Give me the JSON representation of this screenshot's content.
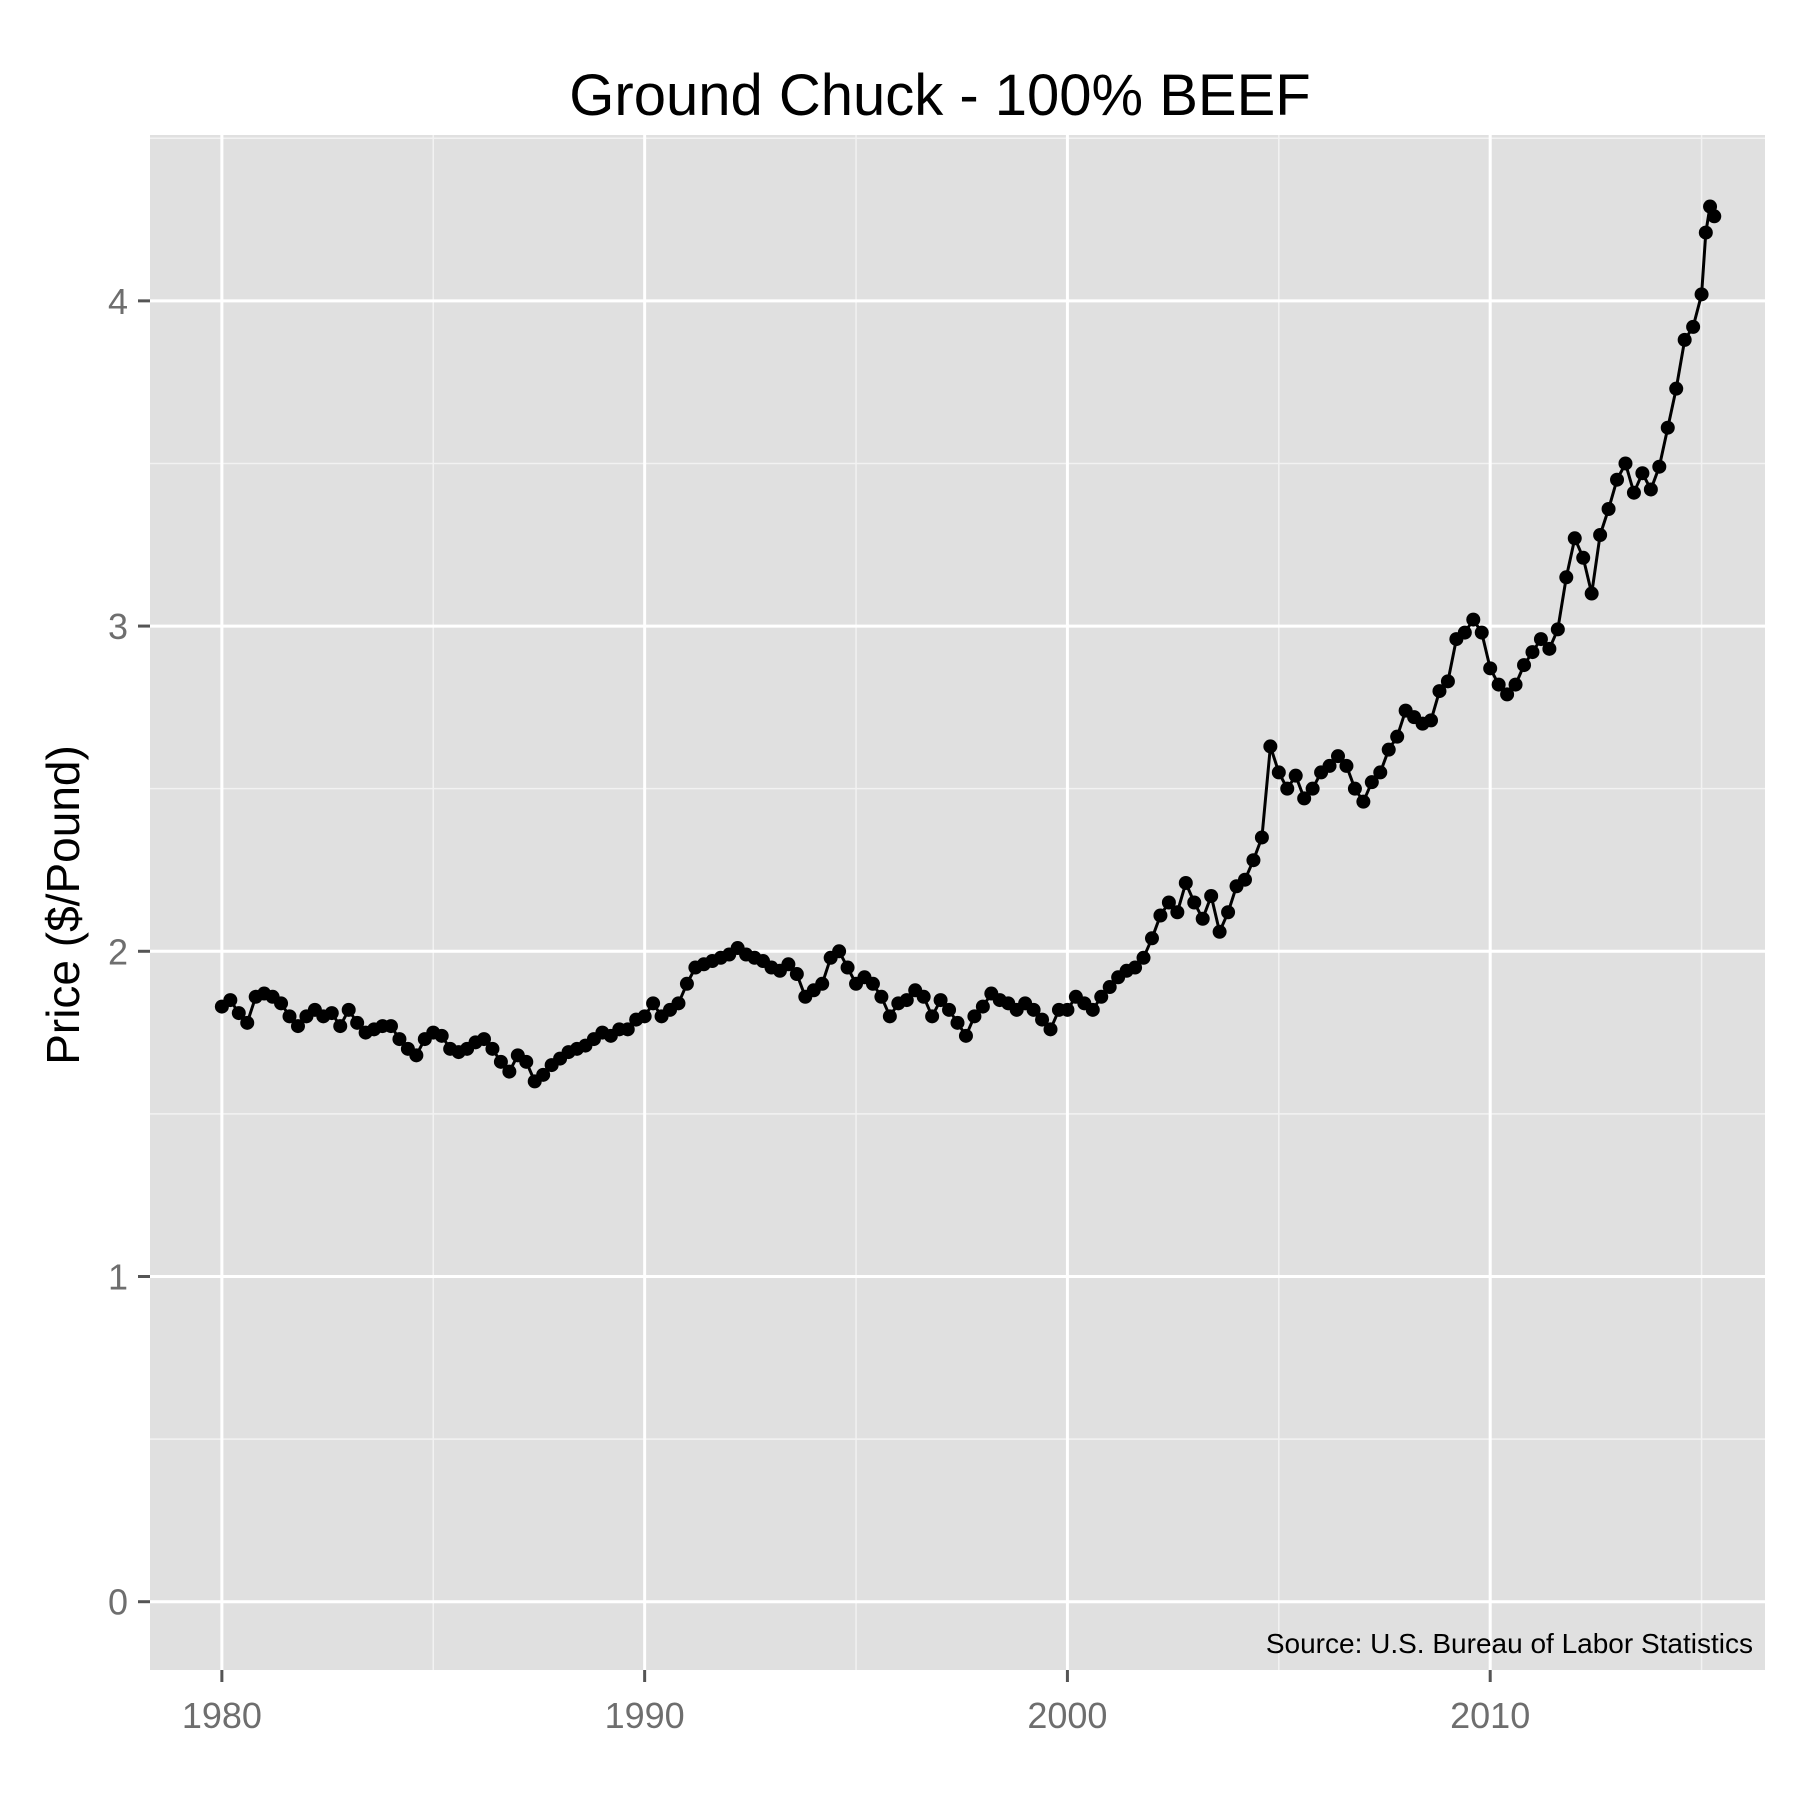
{
  "chart_data": {
    "type": "line",
    "title": "Ground Chuck - 100% BEEF",
    "xlabel": "",
    "ylabel": "Price ($/Pound)",
    "source_note": "Source:  U.S. Bureau of Labor Statistics",
    "xlim": [
      1978.3,
      2016.5
    ],
    "ylim": [
      -0.21,
      4.51
    ],
    "x_ticks": [
      1980,
      1990,
      2000,
      2010
    ],
    "x_tick_labels": [
      "1980",
      "1990",
      "2000",
      "2010"
    ],
    "y_ticks": [
      0,
      1,
      2,
      3,
      4
    ],
    "y_tick_labels": [
      "0",
      "1",
      "2",
      "3",
      "4"
    ],
    "grid": true,
    "legend": "none",
    "colors": {
      "panel_background": "#e0e0e0",
      "grid_major": "#ffffff",
      "grid_minor": "#f2f2f2",
      "series": "#000000",
      "tick_label": "#6e6e6e",
      "text": "#000000"
    },
    "series": [
      {
        "points": [
          [
            1980.0,
            1.83
          ],
          [
            1980.2,
            1.85
          ],
          [
            1980.4,
            1.81
          ],
          [
            1980.6,
            1.78
          ],
          [
            1980.8,
            1.86
          ],
          [
            1981.0,
            1.87
          ],
          [
            1981.2,
            1.86
          ],
          [
            1981.4,
            1.84
          ],
          [
            1981.6,
            1.8
          ],
          [
            1981.8,
            1.77
          ],
          [
            1982.0,
            1.8
          ],
          [
            1982.2,
            1.82
          ],
          [
            1982.4,
            1.8
          ],
          [
            1982.6,
            1.81
          ],
          [
            1982.8,
            1.77
          ],
          [
            1983.0,
            1.82
          ],
          [
            1983.2,
            1.78
          ],
          [
            1983.4,
            1.75
          ],
          [
            1983.6,
            1.76
          ],
          [
            1983.8,
            1.77
          ],
          [
            1984.0,
            1.77
          ],
          [
            1984.2,
            1.73
          ],
          [
            1984.4,
            1.7
          ],
          [
            1984.6,
            1.68
          ],
          [
            1984.8,
            1.73
          ],
          [
            1985.0,
            1.75
          ],
          [
            1985.2,
            1.74
          ],
          [
            1985.4,
            1.7
          ],
          [
            1985.6,
            1.69
          ],
          [
            1985.8,
            1.7
          ],
          [
            1986.0,
            1.72
          ],
          [
            1986.2,
            1.73
          ],
          [
            1986.4,
            1.7
          ],
          [
            1986.6,
            1.66
          ],
          [
            1986.8,
            1.63
          ],
          [
            1987.0,
            1.68
          ],
          [
            1987.2,
            1.66
          ],
          [
            1987.4,
            1.6
          ],
          [
            1987.6,
            1.62
          ],
          [
            1987.8,
            1.65
          ],
          [
            1988.0,
            1.67
          ],
          [
            1988.2,
            1.69
          ],
          [
            1988.4,
            1.7
          ],
          [
            1988.6,
            1.71
          ],
          [
            1988.8,
            1.73
          ],
          [
            1989.0,
            1.75
          ],
          [
            1989.2,
            1.74
          ],
          [
            1989.4,
            1.76
          ],
          [
            1989.6,
            1.76
          ],
          [
            1989.8,
            1.79
          ],
          [
            1990.0,
            1.8
          ],
          [
            1990.2,
            1.84
          ],
          [
            1990.4,
            1.8
          ],
          [
            1990.6,
            1.82
          ],
          [
            1990.8,
            1.84
          ],
          [
            1991.0,
            1.9
          ],
          [
            1991.2,
            1.95
          ],
          [
            1991.4,
            1.96
          ],
          [
            1991.6,
            1.97
          ],
          [
            1991.8,
            1.98
          ],
          [
            1992.0,
            1.99
          ],
          [
            1992.2,
            2.01
          ],
          [
            1992.4,
            1.99
          ],
          [
            1992.6,
            1.98
          ],
          [
            1992.8,
            1.97
          ],
          [
            1993.0,
            1.95
          ],
          [
            1993.2,
            1.94
          ],
          [
            1993.4,
            1.96
          ],
          [
            1993.6,
            1.93
          ],
          [
            1993.8,
            1.86
          ],
          [
            1994.0,
            1.88
          ],
          [
            1994.2,
            1.9
          ],
          [
            1994.4,
            1.98
          ],
          [
            1994.6,
            2.0
          ],
          [
            1994.8,
            1.95
          ],
          [
            1995.0,
            1.9
          ],
          [
            1995.2,
            1.92
          ],
          [
            1995.4,
            1.9
          ],
          [
            1995.6,
            1.86
          ],
          [
            1995.8,
            1.8
          ],
          [
            1996.0,
            1.84
          ],
          [
            1996.2,
            1.85
          ],
          [
            1996.4,
            1.88
          ],
          [
            1996.6,
            1.86
          ],
          [
            1996.8,
            1.8
          ],
          [
            1997.0,
            1.85
          ],
          [
            1997.2,
            1.82
          ],
          [
            1997.4,
            1.78
          ],
          [
            1997.6,
            1.74
          ],
          [
            1997.8,
            1.8
          ],
          [
            1998.0,
            1.83
          ],
          [
            1998.2,
            1.87
          ],
          [
            1998.4,
            1.85
          ],
          [
            1998.6,
            1.84
          ],
          [
            1998.8,
            1.82
          ],
          [
            1999.0,
            1.84
          ],
          [
            1999.2,
            1.82
          ],
          [
            1999.4,
            1.79
          ],
          [
            1999.6,
            1.76
          ],
          [
            1999.8,
            1.82
          ],
          [
            2000.0,
            1.82
          ],
          [
            2000.2,
            1.86
          ],
          [
            2000.4,
            1.84
          ],
          [
            2000.6,
            1.82
          ],
          [
            2000.8,
            1.86
          ],
          [
            2001.0,
            1.89
          ],
          [
            2001.2,
            1.92
          ],
          [
            2001.4,
            1.94
          ],
          [
            2001.6,
            1.95
          ],
          [
            2001.8,
            1.98
          ],
          [
            2002.0,
            2.04
          ],
          [
            2002.2,
            2.11
          ],
          [
            2002.4,
            2.15
          ],
          [
            2002.6,
            2.12
          ],
          [
            2002.8,
            2.21
          ],
          [
            2003.0,
            2.15
          ],
          [
            2003.2,
            2.1
          ],
          [
            2003.4,
            2.17
          ],
          [
            2003.6,
            2.06
          ],
          [
            2003.8,
            2.12
          ],
          [
            2004.0,
            2.2
          ],
          [
            2004.2,
            2.22
          ],
          [
            2004.4,
            2.28
          ],
          [
            2004.6,
            2.35
          ],
          [
            2004.8,
            2.63
          ],
          [
            2005.0,
            2.55
          ],
          [
            2005.2,
            2.5
          ],
          [
            2005.4,
            2.54
          ],
          [
            2005.6,
            2.47
          ],
          [
            2005.8,
            2.5
          ],
          [
            2006.0,
            2.55
          ],
          [
            2006.2,
            2.57
          ],
          [
            2006.4,
            2.6
          ],
          [
            2006.6,
            2.57
          ],
          [
            2006.8,
            2.5
          ],
          [
            2007.0,
            2.46
          ],
          [
            2007.2,
            2.52
          ],
          [
            2007.4,
            2.55
          ],
          [
            2007.6,
            2.62
          ],
          [
            2007.8,
            2.66
          ],
          [
            2008.0,
            2.74
          ],
          [
            2008.2,
            2.72
          ],
          [
            2008.4,
            2.7
          ],
          [
            2008.6,
            2.71
          ],
          [
            2008.8,
            2.8
          ],
          [
            2009.0,
            2.83
          ],
          [
            2009.2,
            2.96
          ],
          [
            2009.4,
            2.98
          ],
          [
            2009.6,
            3.02
          ],
          [
            2009.8,
            2.98
          ],
          [
            2010.0,
            2.87
          ],
          [
            2010.2,
            2.82
          ],
          [
            2010.4,
            2.79
          ],
          [
            2010.6,
            2.82
          ],
          [
            2010.8,
            2.88
          ],
          [
            2011.0,
            2.92
          ],
          [
            2011.2,
            2.96
          ],
          [
            2011.4,
            2.93
          ],
          [
            2011.6,
            2.99
          ],
          [
            2011.8,
            3.15
          ],
          [
            2012.0,
            3.27
          ],
          [
            2012.2,
            3.21
          ],
          [
            2012.4,
            3.1
          ],
          [
            2012.6,
            3.28
          ],
          [
            2012.8,
            3.36
          ],
          [
            2013.0,
            3.45
          ],
          [
            2013.2,
            3.5
          ],
          [
            2013.4,
            3.41
          ],
          [
            2013.6,
            3.47
          ],
          [
            2013.8,
            3.42
          ],
          [
            2014.0,
            3.49
          ],
          [
            2014.2,
            3.61
          ],
          [
            2014.4,
            3.73
          ],
          [
            2014.6,
            3.88
          ],
          [
            2014.8,
            3.92
          ],
          [
            2015.0,
            4.02
          ],
          [
            2015.1,
            4.21
          ],
          [
            2015.2,
            4.29
          ],
          [
            2015.3,
            4.26
          ]
        ]
      }
    ]
  }
}
